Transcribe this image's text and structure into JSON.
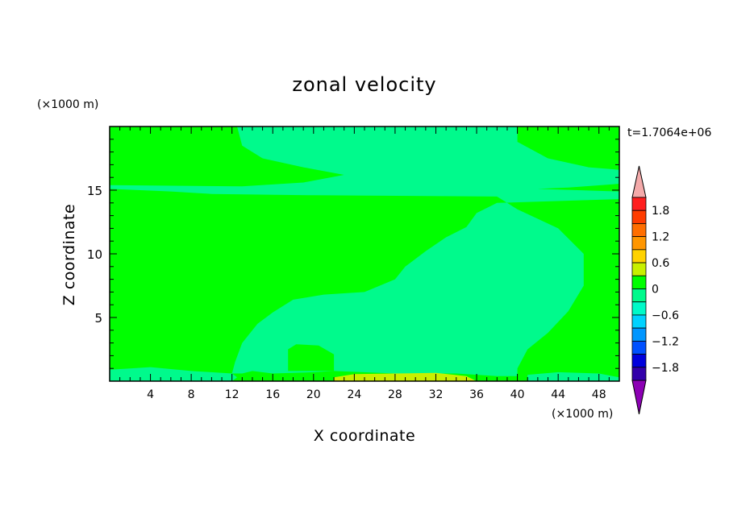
{
  "chart_data": {
    "type": "heatmap",
    "title": "zonal velocity",
    "xlabel": "X coordinate",
    "ylabel": "Z coordinate",
    "x_unit": "(×1000 m)",
    "y_unit": "(×1000 m)",
    "time_label": "t=1.7064e+06",
    "xlim": [
      0,
      50
    ],
    "ylim": [
      0,
      20
    ],
    "x_ticks": [
      4,
      8,
      12,
      16,
      20,
      24,
      28,
      32,
      36,
      40,
      44,
      48
    ],
    "y_ticks": [
      5,
      10,
      15
    ],
    "colorbar": {
      "range": [
        -2.1,
        2.1
      ],
      "step": 0.3,
      "tick_labels": [
        "1.8",
        "1.2",
        "0.6",
        "0",
        "-0.6",
        "-1.2",
        "-1.8"
      ],
      "tick_values": [
        1.8,
        1.2,
        0.6,
        0,
        -0.6,
        -1.2,
        -1.8
      ],
      "top_arrow_color": "#f4aaaa",
      "bottom_arrow_color": "#8c00b4",
      "bins_top_to_bottom": [
        {
          "range": [
            1.8,
            2.1
          ],
          "color": "#ff1e1e"
        },
        {
          "range": [
            1.5,
            1.8
          ],
          "color": "#ff3c00"
        },
        {
          "range": [
            1.2,
            1.5
          ],
          "color": "#ff6e00"
        },
        {
          "range": [
            0.9,
            1.2
          ],
          "color": "#ff9600"
        },
        {
          "range": [
            0.6,
            0.9
          ],
          "color": "#ffd200"
        },
        {
          "range": [
            0.3,
            0.6
          ],
          "color": "#c8f000"
        },
        {
          "range": [
            0.0,
            0.3
          ],
          "color": "#00ff00"
        },
        {
          "range": [
            -0.3,
            0.0
          ],
          "color": "#00fa8c"
        },
        {
          "range": [
            -0.6,
            -0.3
          ],
          "color": "#00fac8"
        },
        {
          "range": [
            -0.9,
            -0.6
          ],
          "color": "#00d2ff"
        },
        {
          "range": [
            -1.2,
            -0.9
          ],
          "color": "#0096ff"
        },
        {
          "range": [
            -1.5,
            -1.2
          ],
          "color": "#0050ff"
        },
        {
          "range": [
            -1.8,
            -1.5
          ],
          "color": "#0000dc"
        },
        {
          "range": [
            -2.1,
            -1.8
          ],
          "color": "#3200aa"
        }
      ]
    },
    "field": {
      "background_level": {
        "range": [
          0.0,
          0.3
        ],
        "color": "#00ff00"
      },
      "regions": [
        {
          "level": [
            -0.3,
            0.0
          ],
          "color": "#00fa8c",
          "outline": [
            [
              12,
              0.6
            ],
            [
              13,
              0.6
            ],
            [
              14,
              0.8
            ],
            [
              16,
              0.6
            ],
            [
              20,
              0.7
            ],
            [
              22,
              0.8
            ],
            [
              28,
              0.6
            ],
            [
              34,
              0.6
            ],
            [
              38,
              0.4
            ],
            [
              40,
              0.4
            ],
            [
              40,
              1
            ],
            [
              41,
              2.5
            ],
            [
              43,
              3.8
            ],
            [
              45,
              5.5
            ],
            [
              46.5,
              7.5
            ],
            [
              46.5,
              10
            ],
            [
              44,
              12
            ],
            [
              40,
              13.5
            ],
            [
              38,
              14.5
            ],
            [
              20,
              14.6
            ],
            [
              10,
              14.7
            ],
            [
              6,
              14.9
            ],
            [
              0,
              15.1
            ],
            [
              0,
              15.4
            ],
            [
              13,
              15.3
            ],
            [
              19,
              15.6
            ],
            [
              23,
              16.2
            ],
            [
              19,
              16.8
            ],
            [
              15,
              17.5
            ],
            [
              13,
              18.5
            ],
            [
              12.5,
              20
            ],
            [
              40,
              20
            ],
            [
              40,
              18.8
            ],
            [
              43,
              17.5
            ],
            [
              47,
              16.8
            ],
            [
              50,
              16.6
            ],
            [
              50,
              15.5
            ],
            [
              45,
              15.2
            ],
            [
              42,
              15.1
            ],
            [
              50,
              14.9
            ],
            [
              50,
              14.3
            ],
            [
              38,
              14.0
            ],
            [
              36,
              13.2
            ],
            [
              35,
              12.1
            ],
            [
              33,
              11.3
            ],
            [
              31,
              10.2
            ],
            [
              29,
              9.0
            ],
            [
              28,
              8.0
            ],
            [
              25,
              7.0
            ],
            [
              21,
              6.8
            ],
            [
              18,
              6.4
            ],
            [
              16,
              5.4
            ],
            [
              14.5,
              4.5
            ],
            [
              13,
              3
            ],
            [
              12.3,
              1.5
            ]
          ]
        },
        {
          "level": [
            0.0,
            0.3
          ],
          "color": "#00ff00",
          "outline": [
            [
              17.5,
              0.8
            ],
            [
              17.5,
              2.5
            ],
            [
              18.3,
              2.9
            ],
            [
              20.5,
              2.8
            ],
            [
              22,
              2.1
            ],
            [
              22,
              0.8
            ]
          ]
        },
        {
          "level": [
            0.3,
            0.6
          ],
          "color": "#c8f000",
          "outline": [
            [
              22,
              0
            ],
            [
              22,
              0.3
            ],
            [
              24,
              0.55
            ],
            [
              28,
              0.6
            ],
            [
              32,
              0.65
            ],
            [
              35,
              0.4
            ],
            [
              36,
              0
            ]
          ]
        },
        {
          "level": [
            -0.3,
            0.0
          ],
          "color": "#00fa8c",
          "outline": [
            [
              0,
              0
            ],
            [
              0,
              0.9
            ],
            [
              2,
              1.0
            ],
            [
              4,
              1.1
            ],
            [
              8,
              0.8
            ],
            [
              12,
              0.6
            ],
            [
              12.5,
              0.3
            ],
            [
              12,
              0
            ]
          ]
        },
        {
          "level": [
            -0.3,
            0.0
          ],
          "color": "#00fa8c",
          "outline": [
            [
              41,
              0
            ],
            [
              41,
              0.5
            ],
            [
              44,
              0.7
            ],
            [
              48,
              0.6
            ],
            [
              50,
              0.3
            ],
            [
              50,
              0
            ]
          ]
        }
      ]
    }
  }
}
